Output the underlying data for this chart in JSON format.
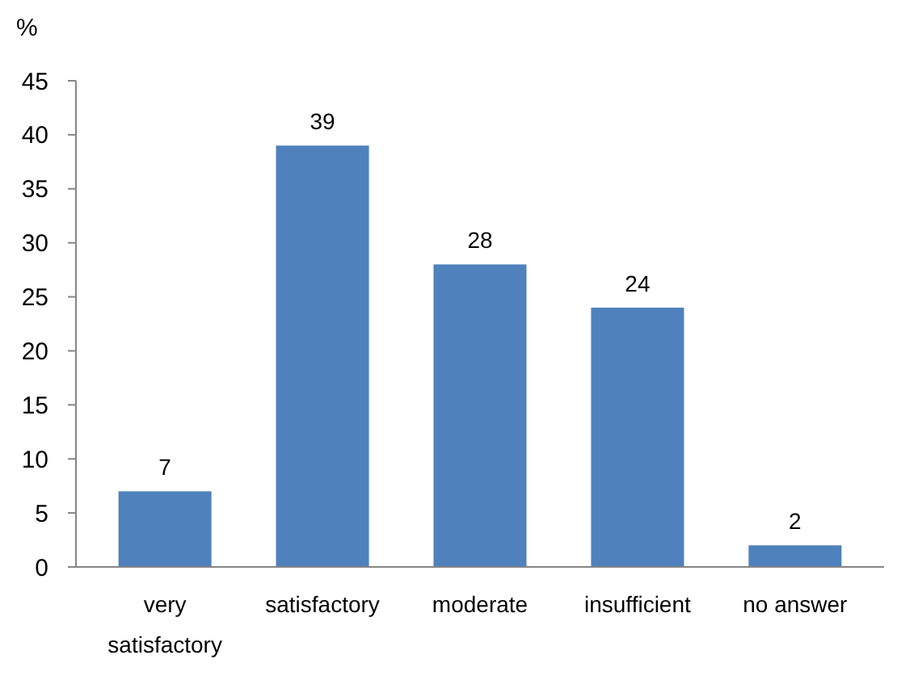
{
  "chart_data": {
    "type": "bar",
    "ylabel": "%",
    "categories": [
      "very satisfactory",
      "satisfactory",
      "moderate",
      "insufficient",
      "no answer"
    ],
    "values": [
      7,
      39,
      28,
      24,
      2
    ],
    "color": "#4f81bd",
    "ylim": [
      0,
      45
    ],
    "yticks": [
      0,
      5,
      10,
      15,
      20,
      25,
      30,
      35,
      40,
      45
    ],
    "grid": false,
    "data_labels": true
  }
}
